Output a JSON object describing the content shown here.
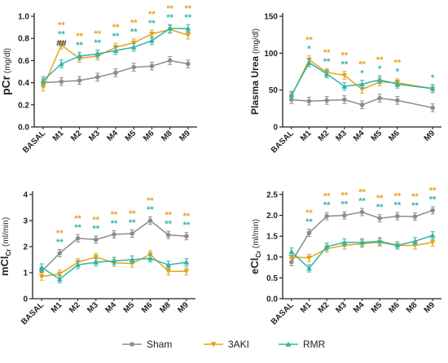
{
  "colors": {
    "Sham": "#8c8c8c",
    "3AKI": "#e6a21a",
    "RMR": "#2eb5a8"
  },
  "chart_data": [
    {
      "type": "line",
      "ylabel_main": "pCr",
      "ylabel_unit": " (mg/dl)",
      "ylim": [
        0,
        1.0
      ],
      "yticks": [
        "0.0",
        "0.2",
        "0.4",
        "0.6",
        "0.8",
        "1.0"
      ],
      "categories": [
        "BASAL",
        "M1",
        "M2",
        "M3",
        "M4",
        "M5",
        "M6",
        "M8",
        "M9"
      ],
      "series": [
        {
          "name": "Sham",
          "values": [
            0.4,
            0.41,
            0.42,
            0.45,
            0.49,
            0.54,
            0.55,
            0.6,
            0.57
          ]
        },
        {
          "name": "3AKI",
          "values": [
            0.36,
            0.74,
            0.62,
            0.64,
            0.72,
            0.76,
            0.84,
            0.88,
            0.83
          ]
        },
        {
          "name": "RMR",
          "values": [
            0.42,
            0.57,
            0.64,
            0.66,
            0.69,
            0.72,
            0.78,
            0.89,
            0.89
          ]
        }
      ],
      "annotations": [
        {
          "cat": "M1",
          "row": 0,
          "text": "##",
          "color": "Sham"
        },
        {
          "cat": "M1",
          "row": 1,
          "text": "**",
          "color": "RMR"
        },
        {
          "cat": "M1",
          "row": 2,
          "text": "**",
          "color": "3AKI"
        },
        {
          "cat": "M2",
          "row": 1,
          "text": "**",
          "color": "RMR"
        },
        {
          "cat": "M2",
          "row": 2,
          "text": "**",
          "color": "3AKI"
        },
        {
          "cat": "M3",
          "row": 1,
          "text": "**",
          "color": "RMR"
        },
        {
          "cat": "M3",
          "row": 2,
          "text": "**",
          "color": "3AKI"
        },
        {
          "cat": "M4",
          "row": 1,
          "text": "**",
          "color": "RMR"
        },
        {
          "cat": "M4",
          "row": 2,
          "text": "**",
          "color": "3AKI"
        },
        {
          "cat": "M5",
          "row": 1,
          "text": "**",
          "color": "RMR"
        },
        {
          "cat": "M5",
          "row": 2,
          "text": "**",
          "color": "3AKI"
        },
        {
          "cat": "M6",
          "row": 1,
          "text": "**",
          "color": "RMR"
        },
        {
          "cat": "M6",
          "row": 2,
          "text": "**",
          "color": "3AKI"
        },
        {
          "cat": "M8",
          "row": 1,
          "text": "**",
          "color": "RMR"
        },
        {
          "cat": "M8",
          "row": 2,
          "text": "**",
          "color": "3AKI"
        },
        {
          "cat": "M9",
          "row": 1,
          "text": "**",
          "color": "RMR"
        },
        {
          "cat": "M9",
          "row": 2,
          "text": "**",
          "color": "3AKI"
        }
      ]
    },
    {
      "type": "line",
      "ylabel_main": "Plasma Urea",
      "ylabel_unit": " (mg/dl)",
      "ylim": [
        0,
        150
      ],
      "yticks": [
        "0",
        "50",
        "100",
        "150"
      ],
      "categories": [
        "BASAL",
        "M1",
        "M2",
        "M3",
        "M4",
        "M5",
        "M6",
        "M9"
      ],
      "series": [
        {
          "name": "Sham",
          "values": [
            37,
            35,
            36,
            37,
            30,
            39,
            36,
            26
          ]
        },
        {
          "name": "3AKI",
          "values": [
            42,
            91,
            74,
            70,
            51,
            61,
            60,
            52
          ]
        },
        {
          "name": "RMR",
          "values": [
            43,
            87,
            72,
            55,
            58,
            64,
            58,
            52
          ]
        }
      ],
      "annotations": [
        {
          "cat": "M1",
          "row": 1,
          "text": "*",
          "color": "RMR"
        },
        {
          "cat": "M1",
          "row": 2,
          "text": "**",
          "color": "3AKI"
        },
        {
          "cat": "M2",
          "row": 1,
          "text": "**",
          "color": "RMR"
        },
        {
          "cat": "M2",
          "row": 2,
          "text": "**",
          "color": "3AKI"
        },
        {
          "cat": "M3",
          "row": 1,
          "text": "**",
          "color": "RMR"
        },
        {
          "cat": "M3",
          "row": 2,
          "text": "**",
          "color": "3AKI"
        },
        {
          "cat": "M4",
          "row": 1,
          "text": "*",
          "color": "RMR"
        },
        {
          "cat": "M4",
          "row": 2,
          "text": "**",
          "color": "3AKI"
        },
        {
          "cat": "M5",
          "row": 1,
          "text": "*",
          "color": "RMR"
        },
        {
          "cat": "M5",
          "row": 2,
          "text": "**",
          "color": "3AKI"
        },
        {
          "cat": "M6",
          "row": 1,
          "text": "*",
          "color": "RMR"
        },
        {
          "cat": "M6",
          "row": 2,
          "text": "**",
          "color": "3AKI"
        },
        {
          "cat": "M9",
          "row": 1,
          "text": "*",
          "color": "RMR"
        }
      ]
    },
    {
      "type": "line",
      "ylabel_main": "mCl",
      "ylabel_sub": "Cr",
      "ylabel_unit": " (ml/min)",
      "ylim": [
        0,
        4
      ],
      "yticks": [
        "0",
        "1",
        "2",
        "3",
        "4"
      ],
      "categories": [
        "BASAL",
        "M1",
        "M2",
        "M3",
        "M4",
        "M5",
        "M6",
        "M8",
        "M9"
      ],
      "series": [
        {
          "name": "Sham",
          "values": [
            1.05,
            1.75,
            2.32,
            2.27,
            2.47,
            2.5,
            3.0,
            2.45,
            2.4
          ]
        },
        {
          "name": "3AKI",
          "values": [
            0.85,
            0.95,
            1.4,
            1.6,
            1.38,
            1.35,
            1.7,
            1.05,
            1.05
          ]
        },
        {
          "name": "RMR",
          "values": [
            1.2,
            0.75,
            1.3,
            1.4,
            1.45,
            1.5,
            1.55,
            1.3,
            1.4
          ]
        }
      ],
      "annotations": [
        {
          "cat": "M1",
          "row": 1,
          "text": "**",
          "color": "RMR"
        },
        {
          "cat": "M1",
          "row": 2,
          "text": "**",
          "color": "3AKI"
        },
        {
          "cat": "M2",
          "row": 1,
          "text": "**",
          "color": "RMR"
        },
        {
          "cat": "M2",
          "row": 2,
          "text": "**",
          "color": "3AKI"
        },
        {
          "cat": "M3",
          "row": 1,
          "text": "**",
          "color": "RMR"
        },
        {
          "cat": "M3",
          "row": 2,
          "text": "**",
          "color": "3AKI"
        },
        {
          "cat": "M4",
          "row": 1,
          "text": "**",
          "color": "RMR"
        },
        {
          "cat": "M4",
          "row": 2,
          "text": "**",
          "color": "3AKI"
        },
        {
          "cat": "M5",
          "row": 1,
          "text": "**",
          "color": "RMR"
        },
        {
          "cat": "M5",
          "row": 2,
          "text": "**",
          "color": "3AKI"
        },
        {
          "cat": "M6",
          "row": 1,
          "text": "**",
          "color": "RMR"
        },
        {
          "cat": "M6",
          "row": 2,
          "text": "**",
          "color": "3AKI"
        },
        {
          "cat": "M8",
          "row": 1,
          "text": "**",
          "color": "RMR"
        },
        {
          "cat": "M8",
          "row": 2,
          "text": "**",
          "color": "3AKI"
        },
        {
          "cat": "M9",
          "row": 1,
          "text": "**",
          "color": "RMR"
        },
        {
          "cat": "M9",
          "row": 2,
          "text": "**",
          "color": "3AKI"
        }
      ]
    },
    {
      "type": "line",
      "ylabel_main": "eCl",
      "ylabel_sub": "Cr",
      "ylabel_unit": " (ml/min)",
      "ylim": [
        0,
        2.5
      ],
      "yticks": [
        "0.0",
        "0.5",
        "1.0",
        "1.5",
        "2.0",
        "2.5"
      ],
      "categories": [
        "BASAL",
        "M1",
        "M2",
        "M3",
        "M4",
        "M5",
        "M6",
        "M8",
        "M9"
      ],
      "series": [
        {
          "name": "Sham",
          "values": [
            0.88,
            1.58,
            1.98,
            2.0,
            2.08,
            1.93,
            1.98,
            1.97,
            2.12
          ]
        },
        {
          "name": "3AKI",
          "values": [
            1.0,
            0.98,
            1.2,
            1.28,
            1.32,
            1.35,
            1.28,
            1.28,
            1.35
          ]
        },
        {
          "name": "RMR",
          "values": [
            1.13,
            0.73,
            1.25,
            1.35,
            1.35,
            1.38,
            1.28,
            1.38,
            1.52
          ]
        }
      ],
      "annotations": [
        {
          "cat": "M1",
          "row": 1,
          "text": "**",
          "color": "RMR"
        },
        {
          "cat": "M1",
          "row": 2,
          "text": "**",
          "color": "3AKI"
        },
        {
          "cat": "M2",
          "row": 1,
          "text": "**",
          "color": "RMR"
        },
        {
          "cat": "M2",
          "row": 2,
          "text": "**",
          "color": "3AKI"
        },
        {
          "cat": "M3",
          "row": 1,
          "text": "**",
          "color": "RMR"
        },
        {
          "cat": "M3",
          "row": 2,
          "text": "**",
          "color": "3AKI"
        },
        {
          "cat": "M4",
          "row": 1,
          "text": "**",
          "color": "RMR"
        },
        {
          "cat": "M4",
          "row": 2,
          "text": "**",
          "color": "3AKI"
        },
        {
          "cat": "M5",
          "row": 1,
          "text": "**",
          "color": "RMR"
        },
        {
          "cat": "M5",
          "row": 2,
          "text": "**",
          "color": "3AKI"
        },
        {
          "cat": "M6",
          "row": 1,
          "text": "**",
          "color": "RMR"
        },
        {
          "cat": "M6",
          "row": 2,
          "text": "**",
          "color": "3AKI"
        },
        {
          "cat": "M8",
          "row": 1,
          "text": "**",
          "color": "RMR"
        },
        {
          "cat": "M8",
          "row": 2,
          "text": "**",
          "color": "3AKI"
        },
        {
          "cat": "M9",
          "row": 1,
          "text": "**",
          "color": "RMR"
        },
        {
          "cat": "M9",
          "row": 2,
          "text": "**",
          "color": "3AKI"
        }
      ]
    }
  ],
  "legend": [
    {
      "key": "Sham",
      "label": "Sham",
      "marker": "circle"
    },
    {
      "key": "3AKI",
      "label": "3AKI",
      "marker": "triangle-down"
    },
    {
      "key": "RMR",
      "label": "RMR",
      "marker": "triangle-up"
    }
  ]
}
